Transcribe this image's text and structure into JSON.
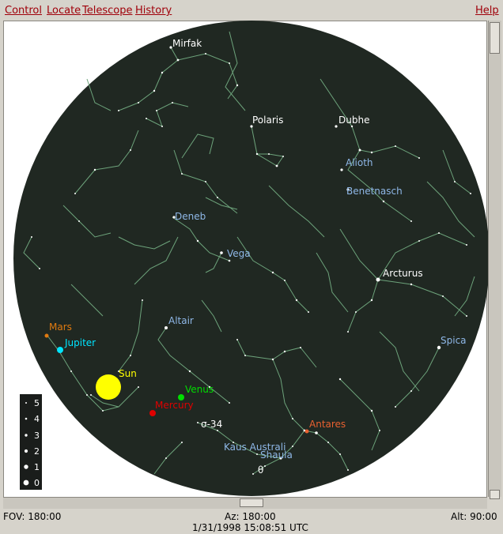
{
  "menu": {
    "control": "Control",
    "locate": "Locate",
    "telescope": "Telescope",
    "history": "History",
    "help": "Help"
  },
  "colors": {
    "sky": "#202822",
    "constellation": "#6da37b",
    "star_label": "#ffffff",
    "blue_label": "#8fb8e8",
    "mars": "#e07a10",
    "jupiter": "#00e5ff",
    "sun": "#ffff00",
    "venus": "#00dd00",
    "mercury": "#e00000",
    "antares": "#e86030"
  },
  "stars": {
    "mirfak": "Mirfak",
    "polaris": "Polaris",
    "dubhe": "Dubhe",
    "alioth": "Alioth",
    "benetnasch": "Benetnasch",
    "deneb": "Deneb",
    "vega": "Vega",
    "arcturus": "Arcturus",
    "altair": "Altair",
    "spica": "Spica",
    "antares": "Antares",
    "kaus_australi": "Kaus Australi",
    "shaula": "Shaula",
    "sigma34": "σ-34",
    "theta": "θ"
  },
  "planets": {
    "mars": "Mars",
    "jupiter": "Jupiter",
    "sun": "Sun",
    "venus": "Venus",
    "mercury": "Mercury"
  },
  "legend": {
    "magnitudes": [
      "5",
      "4",
      "3",
      "2",
      "1",
      "0"
    ]
  },
  "status": {
    "fov": "FOV: 180:00",
    "az": "Az: 180:00",
    "alt": "Alt:  90:00",
    "datetime": "1/31/1998 15:08:51 UTC"
  }
}
